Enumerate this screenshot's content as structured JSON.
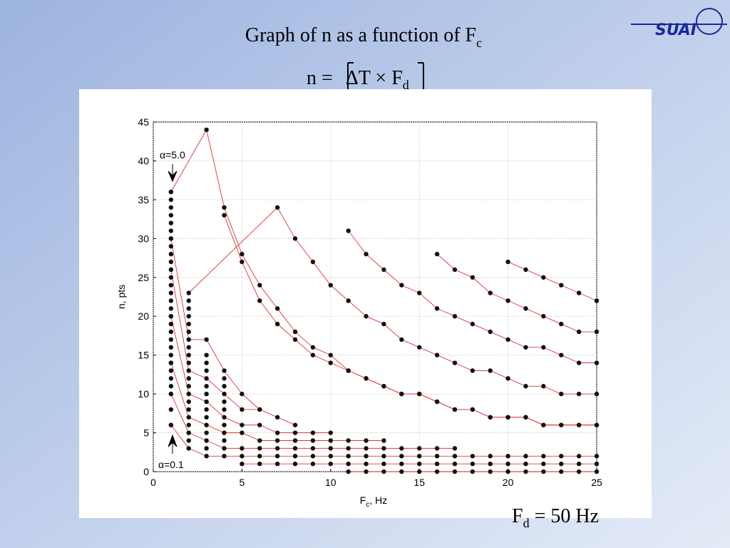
{
  "header": {
    "title": "Graph of n as a function of F",
    "title_sub": "c",
    "formula_lhs": "n =",
    "formula_body": "ΔT × F",
    "formula_sub": "d",
    "logo": "SUAI"
  },
  "footer": {
    "text": "F",
    "sub": "d",
    "rest": " = 50 Hz"
  },
  "chart_data": {
    "type": "line",
    "x_label": {
      "main": "F",
      "sub": "c",
      "rest": ", Hz"
    },
    "y_label": "n, pts",
    "annotations": [
      "α=5.0",
      "α=0.1"
    ],
    "xlim": [
      0,
      25
    ],
    "ylim": [
      0,
      45
    ],
    "xticks": [
      0,
      5,
      10,
      15,
      20,
      25
    ],
    "yticks": [
      0,
      5,
      10,
      15,
      20,
      25,
      30,
      35,
      40,
      45
    ],
    "grid": true,
    "line_color": "#e01818",
    "marker_color": "#111111",
    "series": [
      {
        "connect": true,
        "x": [
          1,
          3,
          4,
          5,
          6,
          7,
          8,
          9,
          10,
          11,
          12,
          13,
          14,
          15,
          16,
          17,
          18,
          19,
          20,
          21,
          22,
          23,
          24,
          25
        ],
        "values": [
          36,
          44,
          34,
          28,
          24,
          21,
          18,
          16,
          15,
          13,
          12,
          11,
          10,
          10,
          9,
          8,
          8,
          7,
          7,
          7,
          6,
          6,
          6,
          6
        ]
      },
      {
        "connect": true,
        "x": [
          4,
          5,
          6,
          7,
          8,
          9,
          10,
          11,
          12,
          13,
          14,
          15,
          16,
          17,
          18,
          19,
          20,
          21,
          22,
          23,
          24,
          25
        ],
        "values": [
          33,
          27,
          22,
          19,
          17,
          15,
          14,
          13,
          12,
          11,
          10,
          10,
          9,
          8,
          8,
          7,
          7,
          7,
          6,
          6,
          6,
          6
        ]
      },
      {
        "connect": true,
        "x": [
          2,
          7,
          8,
          9,
          10,
          11,
          12,
          13,
          14,
          15,
          16,
          17,
          18,
          19,
          20,
          21,
          22,
          23,
          24,
          25
        ],
        "values": [
          23,
          34,
          30,
          27,
          24,
          22,
          20,
          19,
          17,
          16,
          15,
          14,
          13,
          13,
          12,
          11,
          11,
          10,
          10,
          10
        ]
      },
      {
        "connect": true,
        "x": [
          11,
          12,
          13,
          14,
          15,
          16,
          17,
          18,
          19,
          20,
          21,
          22,
          23,
          24,
          25
        ],
        "values": [
          31,
          28,
          26,
          24,
          23,
          21,
          20,
          19,
          18,
          17,
          16,
          16,
          15,
          14,
          14
        ]
      },
      {
        "connect": true,
        "x": [
          16,
          17,
          18,
          19,
          20,
          21,
          22,
          23,
          24,
          25
        ],
        "values": [
          28,
          26,
          25,
          23,
          22,
          21,
          20,
          19,
          18,
          18
        ]
      },
      {
        "connect": true,
        "x": [
          20,
          21,
          22,
          23,
          24,
          25
        ],
        "values": [
          27,
          26,
          25,
          24,
          23,
          22
        ]
      },
      {
        "connect": true,
        "x": [
          1,
          2,
          3,
          4,
          5,
          6,
          7,
          8,
          9,
          10,
          11,
          12,
          13,
          14,
          15,
          16,
          17,
          18,
          19,
          20,
          21,
          22,
          23,
          24,
          25
        ],
        "values": [
          6,
          3,
          2,
          2,
          2,
          2,
          2,
          2,
          2,
          2,
          2,
          2,
          2,
          2,
          2,
          2,
          2,
          2,
          2,
          2,
          2,
          2,
          2,
          2,
          2
        ]
      },
      {
        "connect": true,
        "x": [
          5,
          6,
          7,
          8,
          9,
          10,
          11,
          12,
          13,
          14,
          15,
          16,
          17,
          18,
          19,
          20,
          21,
          22,
          23,
          24,
          25
        ],
        "values": [
          1,
          1,
          1,
          1,
          1,
          1,
          1,
          1,
          1,
          1,
          1,
          1,
          1,
          1,
          1,
          1,
          1,
          1,
          1,
          1,
          1
        ]
      },
      {
        "connect": true,
        "x": [
          11,
          12,
          13,
          14,
          15,
          16,
          17,
          18,
          19,
          20,
          21,
          22,
          23,
          24,
          25
        ],
        "values": [
          0,
          0,
          0,
          0,
          0,
          0,
          0,
          0,
          0,
          0,
          0,
          0,
          0,
          0,
          0
        ]
      },
      {
        "connect": true,
        "x": [
          1,
          2,
          3,
          4,
          5,
          6,
          7,
          8,
          9,
          10,
          11,
          12,
          13,
          14,
          15,
          16,
          17
        ],
        "values": [
          10,
          5,
          4,
          3,
          3,
          3,
          3,
          3,
          3,
          3,
          3,
          3,
          3,
          3,
          3,
          3,
          3
        ]
      },
      {
        "connect": true,
        "x": [
          1,
          2,
          3,
          4,
          5,
          6,
          7,
          8,
          9,
          10,
          11,
          12,
          13
        ],
        "values": [
          14,
          7,
          6,
          5,
          5,
          4,
          4,
          4,
          4,
          4,
          4,
          4,
          4
        ]
      },
      {
        "connect": true,
        "x": [
          1,
          2,
          3,
          4,
          5,
          6,
          7,
          8,
          9,
          10
        ],
        "values": [
          20,
          10,
          9,
          7,
          6,
          6,
          5,
          5,
          5,
          5
        ]
      },
      {
        "connect": true,
        "x": [
          1,
          2,
          3,
          4,
          5,
          6,
          7,
          8
        ],
        "values": [
          26,
          13,
          12,
          10,
          8,
          8,
          7,
          6
        ]
      },
      {
        "connect": true,
        "x": [
          1,
          2,
          3,
          4,
          5,
          6
        ],
        "values": [
          30,
          17,
          17,
          13,
          10,
          8
        ]
      },
      {
        "connect": false,
        "x": [
          1,
          1,
          1,
          1,
          1,
          1,
          1,
          1,
          1,
          1,
          1,
          1,
          1,
          1,
          1,
          1,
          1,
          1,
          1,
          1,
          1,
          1,
          1,
          1,
          1,
          1,
          1,
          1,
          1
        ],
        "values": [
          8,
          11,
          12,
          13,
          15,
          16,
          17,
          18,
          19,
          21,
          22,
          23,
          24,
          25,
          27,
          28,
          29,
          31,
          32,
          33,
          34,
          35,
          6,
          10,
          14,
          20,
          26,
          30,
          36
        ]
      },
      {
        "connect": false,
        "x": [
          2,
          2,
          2,
          2,
          2,
          2,
          2,
          2,
          2,
          2,
          2,
          2,
          2,
          2
        ],
        "values": [
          4,
          6,
          8,
          9,
          11,
          12,
          14,
          15,
          16,
          18,
          19,
          20,
          21,
          22
        ]
      },
      {
        "connect": false,
        "x": [
          3,
          3,
          3,
          3,
          3,
          3,
          3,
          3,
          3
        ],
        "values": [
          3,
          5,
          7,
          8,
          10,
          11,
          13,
          14,
          15
        ]
      },
      {
        "connect": false,
        "x": [
          4,
          4,
          4,
          4,
          4,
          4
        ],
        "values": [
          4,
          6,
          8,
          9,
          11,
          12
        ]
      }
    ]
  }
}
